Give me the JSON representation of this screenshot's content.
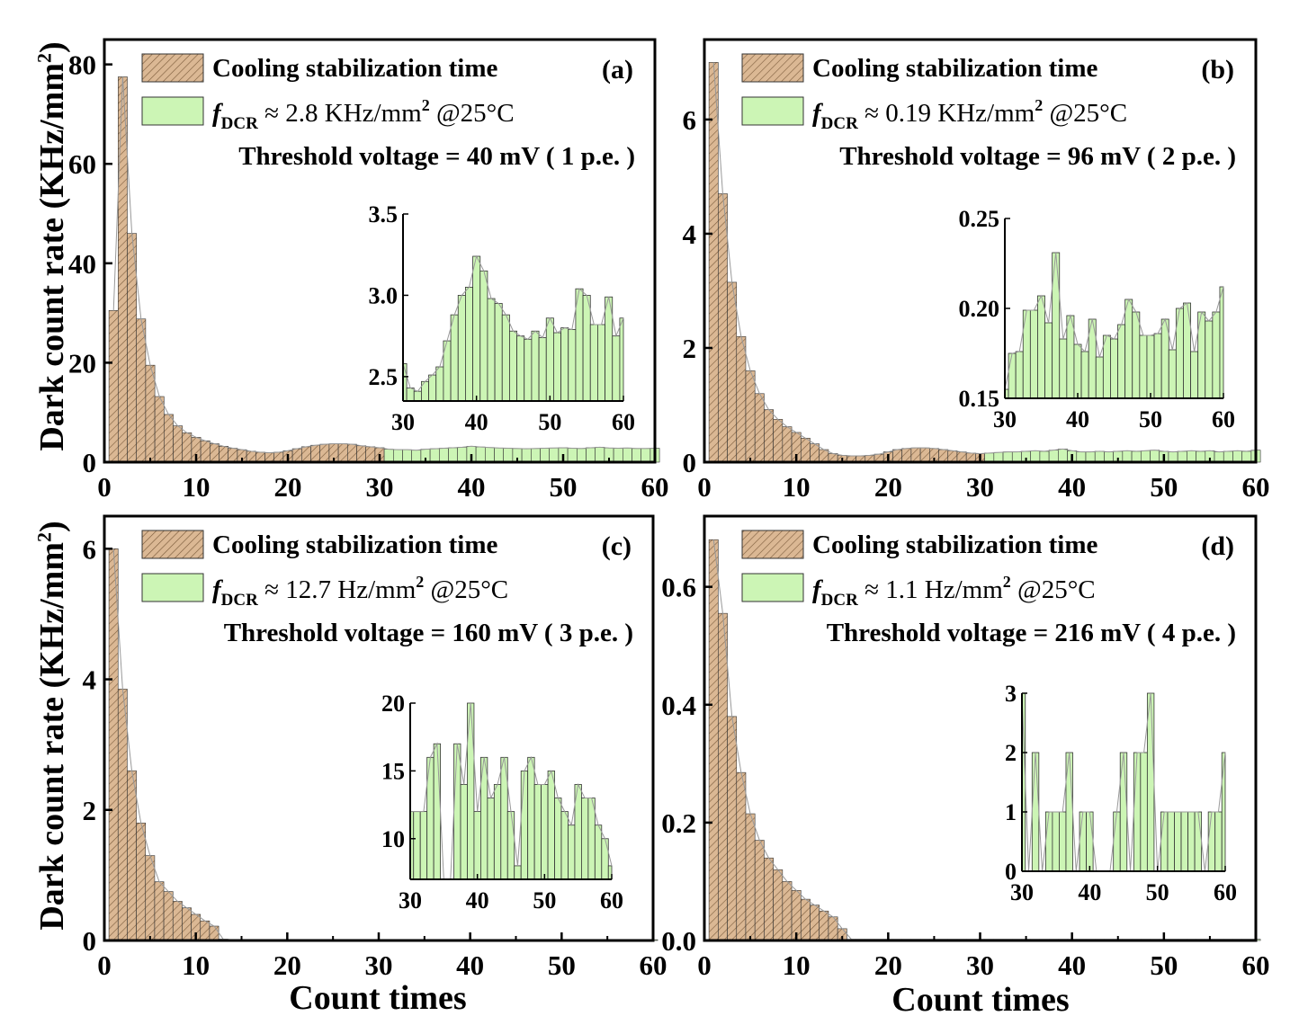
{
  "figure": {
    "ylabel_prefix": "Dark count rate (KHz/mm",
    "ylabel_sup": "2",
    "ylabel_suffix": ")",
    "xlabel": "Count times",
    "colors": {
      "cooling_fill": "#dbb894",
      "cooling_hatch": "#7a5a3a",
      "measure_fill": "#ccf5b5",
      "line": "#999999",
      "axis": "#000000"
    }
  },
  "chart_data": [
    {
      "id": "a",
      "type": "bar",
      "panel_label": "(a)",
      "legend": {
        "cooling": "Cooling stabilization time",
        "f_symbol": "f",
        "f_sub": "DCR",
        "dcr_value": "≈ 2.8 KHz/mm",
        "dcr_sup": "2",
        "dcr_temp": "@25°C"
      },
      "threshold": "Threshold voltage = 40 mV ( 1 p.e. )",
      "xlim": [
        0,
        60
      ],
      "ylim": [
        0,
        85
      ],
      "xticks": [
        0,
        10,
        20,
        30,
        40,
        50,
        60
      ],
      "yticks": [
        0,
        20,
        40,
        60,
        80
      ],
      "cooling_end": 30,
      "values": [
        30.5,
        77.5,
        46,
        28.8,
        19.5,
        13.2,
        9.6,
        7.3,
        5.9,
        5.0,
        4.3,
        3.7,
        3.2,
        2.8,
        2.5,
        2.2,
        2.0,
        1.9,
        2.0,
        2.3,
        2.7,
        3.1,
        3.4,
        3.6,
        3.7,
        3.7,
        3.6,
        3.3,
        3.1,
        2.9,
        2.6,
        2.5,
        2.5,
        2.4,
        2.6,
        2.7,
        2.8,
        2.9,
        3.0,
        3.2,
        3.05,
        2.95,
        2.85,
        2.8,
        2.75,
        2.7,
        2.75,
        2.8,
        2.85,
        2.9,
        2.8,
        2.75,
        2.9,
        3.0,
        2.85,
        2.8,
        2.85,
        2.75,
        2.75,
        2.8
      ],
      "inset": {
        "xlim": [
          30,
          60
        ],
        "ylim": [
          2.35,
          3.5
        ],
        "xticks": [
          30,
          40,
          50,
          60
        ],
        "yticks": [
          2.5,
          3.0,
          3.5
        ],
        "ytick_labels": [
          "2.5",
          "3.0",
          "3.5"
        ],
        "x": [
          30,
          31,
          32,
          33,
          34,
          35,
          36,
          37,
          38,
          39,
          40,
          41,
          42,
          43,
          44,
          45,
          46,
          47,
          48,
          49,
          50,
          51,
          52,
          53,
          54,
          55,
          56,
          57,
          58,
          59,
          60
        ],
        "values": [
          2.58,
          2.43,
          2.41,
          2.47,
          2.51,
          2.56,
          2.72,
          2.88,
          3.0,
          3.05,
          3.24,
          3.15,
          2.98,
          2.95,
          2.88,
          2.78,
          2.75,
          2.73,
          2.78,
          2.74,
          2.86,
          2.77,
          2.8,
          2.79,
          3.04,
          3.0,
          2.82,
          2.82,
          2.99,
          2.75,
          2.86
        ]
      }
    },
    {
      "id": "b",
      "type": "bar",
      "panel_label": "(b)",
      "legend": {
        "cooling": "Cooling stabilization time",
        "f_symbol": "f",
        "f_sub": "DCR",
        "dcr_value": "≈ 0.19 KHz/mm",
        "dcr_sup": "2",
        "dcr_temp": "@25°C"
      },
      "threshold": "Threshold voltage = 96 mV ( 2 p.e. )",
      "xlim": [
        0,
        60
      ],
      "ylim": [
        0,
        7.4
      ],
      "xticks": [
        0,
        10,
        20,
        30,
        40,
        50,
        60
      ],
      "yticks": [
        0,
        2,
        4,
        6
      ],
      "cooling_end": 30,
      "values": [
        7.0,
        4.7,
        3.15,
        2.2,
        1.6,
        1.2,
        0.92,
        0.75,
        0.62,
        0.52,
        0.42,
        0.32,
        0.22,
        0.15,
        0.12,
        0.11,
        0.11,
        0.12,
        0.14,
        0.18,
        0.22,
        0.24,
        0.25,
        0.25,
        0.24,
        0.22,
        0.2,
        0.18,
        0.16,
        0.15,
        0.16,
        0.17,
        0.18,
        0.18,
        0.19,
        0.2,
        0.19,
        0.21,
        0.23,
        0.2,
        0.18,
        0.18,
        0.19,
        0.18,
        0.19,
        0.2,
        0.19,
        0.2,
        0.21,
        0.19,
        0.18,
        0.19,
        0.2,
        0.19,
        0.2,
        0.18,
        0.19,
        0.2,
        0.19,
        0.21
      ],
      "inset": {
        "xlim": [
          30,
          60
        ],
        "ylim": [
          0.15,
          0.25
        ],
        "xticks": [
          30,
          40,
          50,
          60
        ],
        "yticks": [
          0.15,
          0.2,
          0.25
        ],
        "ytick_labels": [
          "0.15",
          "0.20",
          "0.25"
        ],
        "x": [
          30,
          31,
          32,
          33,
          34,
          35,
          36,
          37,
          38,
          39,
          40,
          41,
          42,
          43,
          44,
          45,
          46,
          47,
          48,
          49,
          50,
          51,
          52,
          53,
          54,
          55,
          56,
          57,
          58,
          59,
          60
        ],
        "values": [
          0.155,
          0.175,
          0.176,
          0.199,
          0.199,
          0.207,
          0.192,
          0.231,
          0.183,
          0.196,
          0.18,
          0.176,
          0.194,
          0.173,
          0.185,
          0.183,
          0.191,
          0.205,
          0.198,
          0.185,
          0.185,
          0.186,
          0.194,
          0.177,
          0.2,
          0.203,
          0.176,
          0.198,
          0.193,
          0.198,
          0.212
        ]
      }
    },
    {
      "id": "c",
      "type": "bar",
      "panel_label": "(c)",
      "legend": {
        "cooling": "Cooling stabilization time",
        "f_symbol": "f",
        "f_sub": "DCR",
        "dcr_value": "≈ 12.7 Hz/mm",
        "dcr_sup": "2",
        "dcr_temp": "@25°C"
      },
      "threshold": "Threshold voltage = 160 mV ( 3 p.e. )",
      "xlim": [
        0,
        60
      ],
      "ylim": [
        0,
        6.5
      ],
      "xticks": [
        0,
        10,
        20,
        30,
        40,
        50,
        60
      ],
      "yticks": [
        0,
        2,
        4,
        6
      ],
      "cooling_end": 30,
      "values": [
        6.0,
        3.85,
        2.6,
        1.8,
        1.3,
        0.9,
        0.75,
        0.6,
        0.5,
        0.4,
        0.3,
        0.22,
        0.02,
        0.012,
        0.012,
        0.012,
        0.012,
        0.012,
        0.012,
        0.012,
        0.012,
        0.012,
        0.012,
        0.012,
        0.012,
        0.012,
        0.012,
        0.012,
        0.012,
        0.012,
        0.012,
        0.012,
        0.012,
        0.012,
        0.012,
        0.012,
        0.012,
        0.012,
        0.012,
        0.012,
        0.012,
        0.012,
        0.012,
        0.012,
        0.012,
        0.012,
        0.012,
        0.012,
        0.012,
        0.012,
        0.012,
        0.012,
        0.012,
        0.012,
        0.012,
        0.012,
        0.012,
        0.012,
        0.012,
        0.012
      ],
      "inset": {
        "xlim": [
          30,
          60
        ],
        "ylim": [
          7,
          20
        ],
        "xticks": [
          30,
          40,
          50,
          60
        ],
        "yticks": [
          10,
          15,
          20
        ],
        "ytick_labels": [
          "10",
          "15",
          "20"
        ],
        "x": [
          30,
          31,
          32,
          33,
          34,
          35,
          36,
          37,
          38,
          39,
          40,
          41,
          42,
          43,
          44,
          45,
          46,
          47,
          48,
          49,
          50,
          51,
          52,
          53,
          54,
          55,
          56,
          57,
          58,
          59,
          60
        ],
        "values": [
          12,
          12,
          12,
          16,
          17,
          7,
          7,
          17,
          14,
          20,
          12,
          16,
          13,
          14,
          16,
          12,
          8,
          15,
          16,
          14,
          14,
          15,
          13,
          12,
          11,
          14,
          13,
          13,
          11,
          10,
          8
        ]
      }
    },
    {
      "id": "d",
      "type": "bar",
      "panel_label": "(d)",
      "legend": {
        "cooling": "Cooling stabilization time",
        "f_symbol": "f",
        "f_sub": "DCR",
        "dcr_value": "≈ 1.1 Hz/mm",
        "dcr_sup": "2",
        "dcr_temp": "@25°C"
      },
      "threshold": "Threshold voltage = 216 mV ( 4 p.e. )",
      "xlim": [
        0,
        60
      ],
      "ylim": [
        0,
        0.72
      ],
      "xticks": [
        0,
        10,
        20,
        30,
        40,
        50,
        60
      ],
      "yticks": [
        0,
        0.2,
        0.4,
        0.6
      ],
      "ytick_labels": [
        "0.0",
        "0.2",
        "0.4",
        "0.6"
      ],
      "cooling_end": 30,
      "values": [
        0.68,
        0.555,
        0.38,
        0.285,
        0.215,
        0.17,
        0.14,
        0.12,
        0.1,
        0.085,
        0.07,
        0.06,
        0.05,
        0.04,
        0.02,
        0.002,
        0.002,
        0.002,
        0.002,
        0.002,
        0.002,
        0.002,
        0.002,
        0.002,
        0.002,
        0.002,
        0.002,
        0.002,
        0.002,
        0.002,
        0.002,
        0.002,
        0.002,
        0.002,
        0.002,
        0.002,
        0.002,
        0.002,
        0.002,
        0.002,
        0.002,
        0.002,
        0.002,
        0.002,
        0.002,
        0.002,
        0.002,
        0.002,
        0.002,
        0.002,
        0.002,
        0.002,
        0.002,
        0.002,
        0.002,
        0.002,
        0.002,
        0.002,
        0.002,
        0.002
      ],
      "inset": {
        "xlim": [
          30,
          60
        ],
        "ylim": [
          0,
          3
        ],
        "xticks": [
          30,
          40,
          50,
          60
        ],
        "yticks": [
          0,
          1,
          2,
          3
        ],
        "ytick_labels": [
          "0",
          "1",
          "2",
          "3"
        ],
        "x": [
          30,
          31,
          32,
          33,
          34,
          35,
          36,
          37,
          38,
          39,
          40,
          41,
          42,
          43,
          44,
          45,
          46,
          47,
          48,
          49,
          50,
          51,
          52,
          53,
          54,
          55,
          56,
          57,
          58,
          59,
          60
        ],
        "values": [
          3,
          0,
          2,
          0,
          1,
          1,
          1,
          2,
          0,
          1,
          1,
          0,
          0,
          0,
          1,
          2,
          0,
          2,
          2,
          3,
          0,
          1,
          1,
          1,
          1,
          1,
          1,
          0,
          1,
          1,
          2
        ]
      }
    }
  ]
}
